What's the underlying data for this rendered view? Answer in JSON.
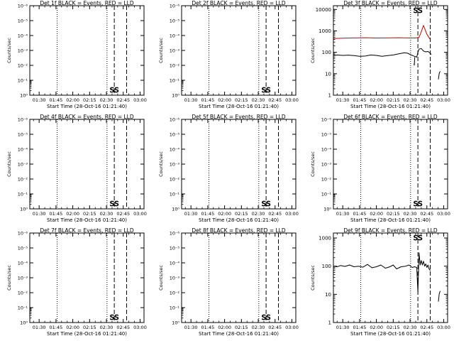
{
  "page": {
    "xlabel": "Start Time (28-Oct-16 01:21:40)",
    "ylabel": "Counts/sec",
    "x_ticks": [
      "01:30",
      "01:45",
      "02:00",
      "02:15",
      "02:30",
      "02:45",
      "03:00"
    ],
    "x_tick_minutes": [
      90,
      105,
      120,
      135,
      150,
      165,
      180
    ],
    "x_range_minutes": [
      81.67,
      183.5
    ],
    "event_lines": {
      "dotted": [
        106,
        150.5
      ],
      "dashed": [
        157,
        168
      ]
    },
    "marker_label": "SS",
    "colors": {
      "events": "#000000",
      "lld": "#cc0000"
    }
  },
  "chart_data": [
    {
      "type": "line",
      "title": "Det 1f BLACK = Events, RED = LLD",
      "yscale": "log",
      "ylim": [
        1,
        10
      ],
      "y_ticks": [
        "10⁰",
        "10⁻¹",
        "10⁻²",
        "10⁻³",
        "10⁻⁴",
        "10⁻⁵",
        "10⁻⁶"
      ],
      "series": []
    },
    {
      "type": "line",
      "title": "Det 2f BLACK = Events, RED = LLD",
      "yscale": "log",
      "ylim": [
        1,
        10
      ],
      "y_ticks": [
        "10⁰",
        "10⁻¹",
        "10⁻²",
        "10⁻³",
        "10⁻⁴",
        "10⁻⁵",
        "10⁻⁶"
      ],
      "series": []
    },
    {
      "type": "line",
      "title": "Det 3f BLACK = Events, RED = LLD",
      "yscale": "log",
      "ylim": [
        1,
        15000
      ],
      "y_ticks": [
        "1",
        "10",
        "100",
        "1000",
        "10000"
      ],
      "series": [
        {
          "color": "#cc0000",
          "x": [
            82,
            90,
            100,
            110,
            120,
            130,
            140,
            148,
            155,
            158,
            160,
            162,
            165,
            168
          ],
          "y": [
            440,
            460,
            470,
            480,
            465,
            470,
            480,
            470,
            470,
            500,
            900,
            1800,
            700,
            400
          ]
        },
        {
          "color": "#000000",
          "x": [
            82,
            85,
            90,
            95,
            100,
            105,
            110,
            115,
            120,
            125,
            130,
            135,
            140,
            145,
            148,
            151,
            154,
            156,
            157,
            158,
            160,
            162,
            164,
            166,
            168,
            169
          ],
          "y": [
            70,
            75,
            72,
            74,
            70,
            65,
            67,
            75,
            72,
            65,
            70,
            75,
            85,
            95,
            90,
            75,
            65,
            60,
            100,
            140,
            150,
            115,
            105,
            110,
            90,
            80
          ]
        },
        {
          "color": "#000000",
          "x": [
            153.6,
            153.8,
            154.2
          ],
          "y": [
            30,
            25,
            60
          ]
        },
        {
          "color": "#000000",
          "x": [
            175.3,
            176,
            176.5,
            177
          ],
          "y": [
            5.5,
            10,
            12,
            13
          ]
        }
      ]
    },
    {
      "type": "line",
      "title": "Det 4f BLACK = Events, RED = LLD",
      "yscale": "log",
      "ylim": [
        1,
        10
      ],
      "y_ticks": [
        "10⁰",
        "10⁻¹",
        "10⁻²",
        "10⁻³",
        "10⁻⁴",
        "10⁻⁵",
        "10⁻⁶"
      ],
      "series": []
    },
    {
      "type": "line",
      "title": "Det 5f BLACK = Events, RED = LLD",
      "yscale": "log",
      "ylim": [
        1,
        10
      ],
      "y_ticks": [
        "10⁰",
        "10⁻¹",
        "10⁻²",
        "10⁻³",
        "10⁻⁴",
        "10⁻⁵",
        "10⁻⁶"
      ],
      "series": []
    },
    {
      "type": "line",
      "title": "Det 6f BLACK = Events, RED = LLD",
      "yscale": "log",
      "ylim": [
        1,
        10
      ],
      "y_ticks": [
        "10⁰",
        "10⁻¹",
        "10⁻²",
        "10⁻³",
        "10⁻⁴",
        "10⁻⁵",
        "10⁻⁶"
      ],
      "series": []
    },
    {
      "type": "line",
      "title": "Det 7f BLACK = Events, RED = LLD",
      "yscale": "log",
      "ylim": [
        1,
        10
      ],
      "y_ticks": [
        "10⁰",
        "10⁻¹",
        "10⁻²",
        "10⁻³",
        "10⁻⁴",
        "10⁻⁵",
        "10⁻⁶"
      ],
      "series": []
    },
    {
      "type": "line",
      "title": "Det 8f BLACK = Events, RED = LLD",
      "yscale": "log",
      "ylim": [
        1,
        10
      ],
      "y_ticks": [
        "10⁰",
        "10⁻¹",
        "10⁻²",
        "10⁻³",
        "10⁻⁴",
        "10⁻⁵",
        "10⁻⁶"
      ],
      "series": []
    },
    {
      "type": "line",
      "title": "Det 9f BLACK = Events, RED = LLD",
      "yscale": "log",
      "ylim": [
        1,
        1500
      ],
      "y_ticks": [
        "1",
        "10",
        "100",
        "1000"
      ],
      "series": [
        {
          "color": "#000000",
          "x": [
            82,
            85,
            88,
            92,
            96,
            100,
            104,
            108,
            112,
            116,
            120,
            124,
            128,
            132,
            135,
            138,
            142,
            146,
            149,
            152,
            154,
            156,
            157,
            158,
            159,
            160,
            161,
            162,
            163,
            164,
            165,
            166,
            167,
            168
          ],
          "y": [
            100,
            95,
            105,
            98,
            110,
            95,
            100,
            92,
            115,
            88,
            95,
            110,
            85,
            95,
            110,
            80,
            95,
            100,
            110,
            90,
            95,
            90,
            12,
            300,
            110,
            160,
            110,
            150,
            100,
            120,
            90,
            110,
            80,
            70
          ]
        },
        {
          "color": "#000000",
          "x": [
            175.3,
            176,
            176.5,
            177
          ],
          "y": [
            5.5,
            10,
            12,
            13
          ]
        }
      ]
    }
  ]
}
